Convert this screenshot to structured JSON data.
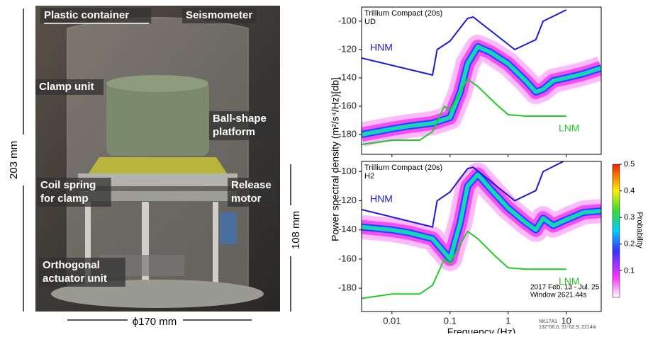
{
  "photo": {
    "labels": {
      "container": {
        "lines": [
          "Plastic container"
        ]
      },
      "seismometer": {
        "lines": [
          "Seismometer"
        ]
      },
      "clamp": {
        "lines": [
          "Clamp unit"
        ]
      },
      "platform": {
        "lines": [
          "Ball-shape",
          "platform"
        ]
      },
      "spring": {
        "lines": [
          "Coil spring",
          "for clamp"
        ]
      },
      "motor": {
        "lines": [
          "Release",
          "motor"
        ]
      },
      "actuator": {
        "lines": [
          "Orthogonal",
          "actuator unit"
        ]
      }
    },
    "height_total": "203 mm",
    "height_part": "108 mm",
    "diameter": "ϕ170 mm"
  },
  "chart_data": [
    {
      "type": "line",
      "title": "Trillium Compact (20s)",
      "subtitle": "UD",
      "ylabel": "Power spectral density (m²/s⁴/Hz)[db]",
      "log_x": true,
      "xlim": [
        0.003,
        40
      ],
      "xticks": [
        0.01,
        0.1,
        1,
        10
      ],
      "ylim": [
        -194,
        -90
      ],
      "yticks": [
        -100,
        -120,
        -140,
        -160,
        -180
      ],
      "series": [
        {
          "name": "HNM",
          "color": "#1a1ad8",
          "x": [
            0.003,
            0.05,
            0.06,
            0.1,
            0.2,
            0.25,
            1.3,
            3,
            4,
            10
          ],
          "values": [
            -126,
            -138,
            -120,
            -114,
            -98,
            -97,
            -120,
            -113,
            -100,
            -92
          ]
        },
        {
          "name": "LNM",
          "color": "#22cc22",
          "x": [
            0.003,
            0.01,
            0.03,
            0.05,
            0.08,
            0.1,
            0.15,
            0.2,
            0.3,
            0.6,
            1,
            2,
            10
          ],
          "values": [
            -187,
            -184,
            -184,
            -178,
            -160,
            -163,
            -150,
            -141,
            -146,
            -158,
            -166,
            -167,
            -167
          ]
        }
      ],
      "density_mode": {
        "x": [
          0.003,
          0.01,
          0.02,
          0.05,
          0.1,
          0.15,
          0.2,
          0.3,
          0.5,
          1,
          2,
          3,
          4,
          6,
          10,
          20,
          40
        ],
        "values": [
          -180,
          -176,
          -174,
          -172,
          -168,
          -150,
          -130,
          -118,
          -122,
          -130,
          -142,
          -150,
          -148,
          -142,
          -140,
          -137,
          -133
        ]
      }
    },
    {
      "type": "line",
      "title": "Trillium Compact (20s)",
      "subtitle": "H2",
      "xlabel": "Frequency (Hz)",
      "log_x": true,
      "xlim": [
        0.003,
        40
      ],
      "xticks": [
        0.01,
        0.1,
        1,
        10
      ],
      "ylim": [
        -196,
        -93
      ],
      "yticks": [
        -100,
        -120,
        -140,
        -160,
        -180
      ],
      "series": [
        {
          "name": "HNM",
          "color": "#1a1ad8",
          "x": [
            0.003,
            0.05,
            0.06,
            0.1,
            0.2,
            0.25,
            1.3,
            3,
            4,
            10
          ],
          "values": [
            -126,
            -138,
            -120,
            -114,
            -98,
            -97,
            -120,
            -113,
            -100,
            -92
          ]
        },
        {
          "name": "LNM",
          "color": "#22cc22",
          "x": [
            0.003,
            0.01,
            0.03,
            0.05,
            0.08,
            0.1,
            0.15,
            0.2,
            0.3,
            0.6,
            1,
            2,
            10
          ],
          "values": [
            -187,
            -184,
            -184,
            -178,
            -160,
            -163,
            -150,
            -141,
            -146,
            -158,
            -166,
            -167,
            -167
          ]
        }
      ],
      "density_mode": {
        "x": [
          0.003,
          0.01,
          0.02,
          0.05,
          0.1,
          0.15,
          0.2,
          0.3,
          0.5,
          1,
          2,
          3,
          4,
          6,
          10,
          20,
          40
        ],
        "values": [
          -138,
          -140,
          -142,
          -146,
          -160,
          -135,
          -110,
          -102,
          -112,
          -125,
          -135,
          -140,
          -132,
          -137,
          -133,
          -128,
          -127
        ]
      },
      "notes": [
        "2017 Feb. 13  - Jul. 25",
        "Window 2621.44s"
      ],
      "station": [
        "NK17A1",
        "132°06.0, 31°02.9, 2214m"
      ]
    }
  ],
  "colorbar": {
    "title": "Probability",
    "lim": [
      0,
      0.5
    ],
    "ticks": [
      0.1,
      0.2,
      0.3,
      0.4,
      0.5
    ]
  }
}
